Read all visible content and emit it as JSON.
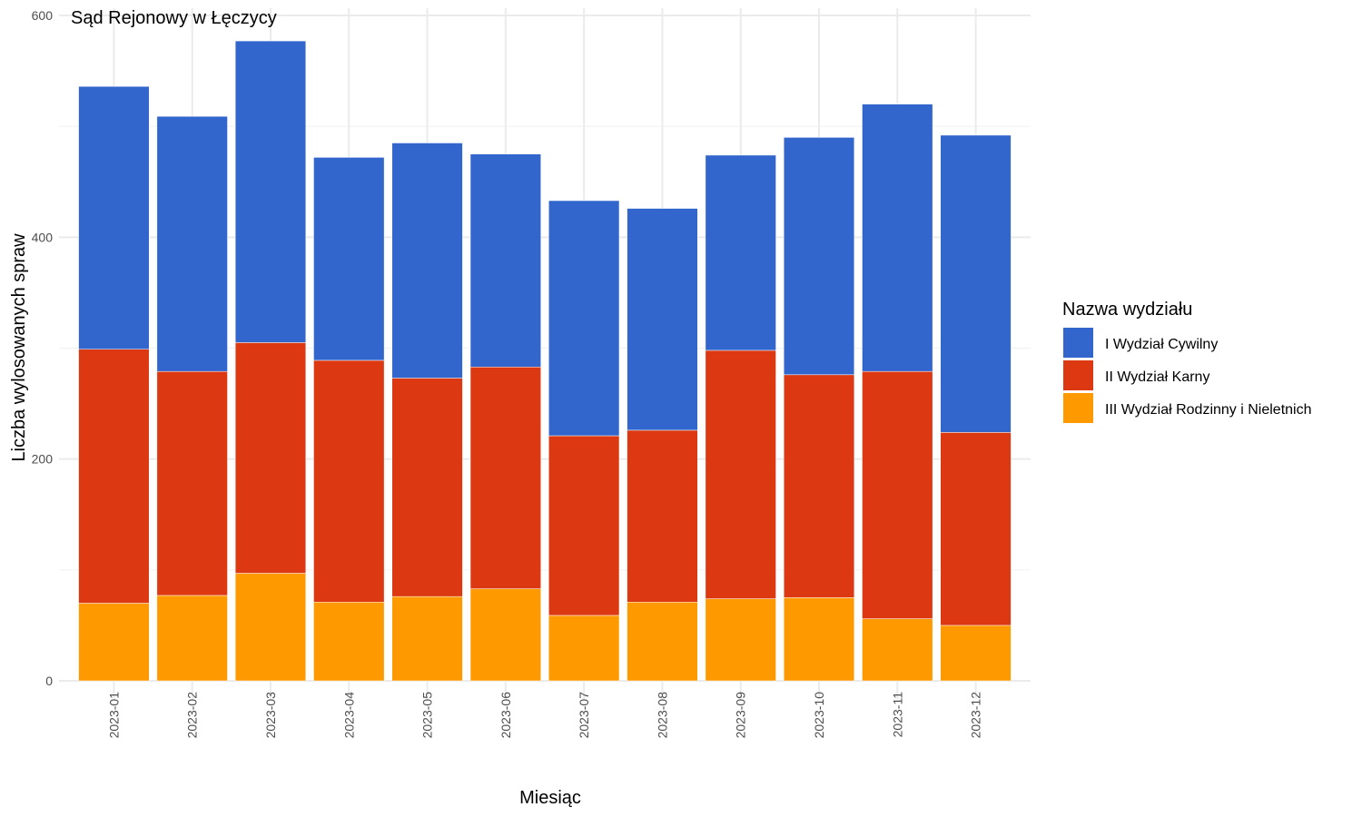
{
  "chart_data": {
    "type": "bar",
    "stacked": true,
    "title": "Sąd Rejonowy w Łęczycy",
    "xlabel": "Miesiąc",
    "ylabel": "Liczba wylosowanych spraw",
    "ylim": [
      0,
      600
    ],
    "yticks": [
      "0",
      "200",
      "400",
      "600"
    ],
    "grid": true,
    "legend_title": "Nazwa wydziału",
    "legend_position": "right",
    "categories": [
      "2023-01",
      "2023-02",
      "2023-03",
      "2023-04",
      "2023-05",
      "2023-06",
      "2023-07",
      "2023-08",
      "2023-09",
      "2023-10",
      "2023-11",
      "2023-12"
    ],
    "series": [
      {
        "name": "I Wydział Cywilny",
        "color": "#3366CC",
        "values": [
          237,
          230,
          272,
          183,
          212,
          192,
          212,
          200,
          176,
          214,
          241,
          268
        ]
      },
      {
        "name": "II Wydział Karny",
        "color": "#DC3912",
        "values": [
          229,
          202,
          208,
          218,
          197,
          200,
          162,
          155,
          224,
          201,
          223,
          174
        ]
      },
      {
        "name": "III Wydział Rodzinny i Nieletnich",
        "color": "#FF9900",
        "values": [
          70,
          77,
          97,
          71,
          76,
          83,
          59,
          71,
          74,
          75,
          56,
          50
        ]
      }
    ]
  }
}
